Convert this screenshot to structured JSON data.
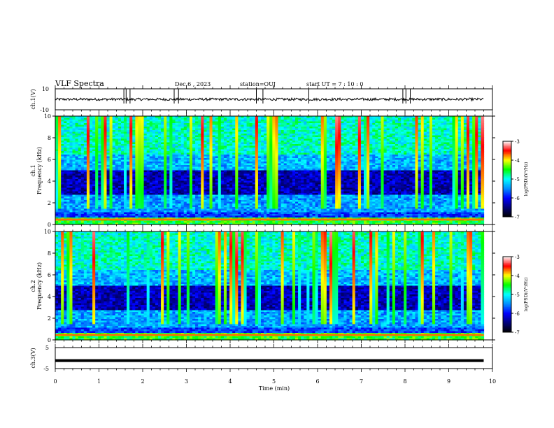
{
  "header": {
    "title": "VLF Spectra",
    "date": "Dec.6 , 2023",
    "station": "station=OUJ",
    "start_ut": "start UT = 7 : 10 : 0"
  },
  "chart_data": [
    {
      "type": "line",
      "name": "ch1-waveform",
      "ylabel": "ch.1(V)",
      "ylim": [
        -10,
        10
      ],
      "yticks": [
        -10,
        10
      ],
      "xlim": [
        0,
        10
      ],
      "baseline": 0,
      "spikes_min": [
        1.57,
        1.62,
        1.71,
        2.72,
        2.82,
        4.6,
        4.75,
        5.8,
        7.95,
        8.02,
        8.12
      ]
    },
    {
      "type": "heatmap",
      "name": "ch1-spectrogram",
      "ylabel": "ch.1 Frequency (kHz)",
      "xlim": [
        0,
        10
      ],
      "ylim": [
        0,
        10
      ],
      "yticks": [
        0,
        2,
        4,
        6,
        8,
        10
      ],
      "data_extent_min": 9.8,
      "colorbar": {
        "label": "log(PSD)(V²/Hz)",
        "range": [
          -7,
          -3
        ],
        "ticks": [
          -7,
          -6,
          -5,
          -4,
          -3
        ]
      }
    },
    {
      "type": "heatmap",
      "name": "ch2-spectrogram",
      "ylabel": "ch.2 Frequency (kHz)",
      "xlim": [
        0,
        10
      ],
      "ylim": [
        0,
        10
      ],
      "yticks": [
        0,
        2,
        4,
        6,
        8,
        10
      ],
      "data_extent_min": 9.8,
      "colorbar": {
        "label": "log(PSD)(V²/Hz)",
        "range": [
          -7,
          -3
        ],
        "ticks": [
          -7,
          -6,
          -5,
          -4,
          -3
        ]
      }
    },
    {
      "type": "line",
      "name": "ch3-waveform",
      "ylabel": "ch.3(V)",
      "ylim": [
        -5,
        5
      ],
      "yticks": [
        -5,
        5
      ],
      "xlim": [
        0,
        10
      ],
      "baseline": -1.2
    }
  ],
  "xaxis": {
    "label": "Time (min)",
    "ticks": [
      0,
      1,
      2,
      3,
      4,
      5,
      6,
      7,
      8,
      9,
      10
    ]
  },
  "colors": {
    "background": "#ffffff",
    "axes": "#000000",
    "colormap": [
      "#000000",
      "#00007a",
      "#0000ff",
      "#0090ff",
      "#00ffff",
      "#00ff00",
      "#ffff00",
      "#ff0000",
      "#ffffff"
    ]
  }
}
